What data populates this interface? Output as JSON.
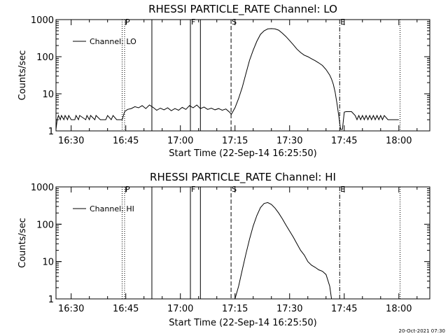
{
  "footer_timestamp": "20-Oct-2021 07:30",
  "chart_data": [
    {
      "type": "line",
      "title": "RHESSI PARTICLE_RATE Channel: LO",
      "xlabel": "Start Time (22-Sep-14 16:25:50)",
      "ylabel": "Counts/sec",
      "yscale": "log",
      "ylim": [
        1,
        1000
      ],
      "xlim": [
        "16:25:50",
        "18:08:30"
      ],
      "xticks": [
        "16:30",
        "16:45",
        "17:00",
        "17:15",
        "17:30",
        "17:45",
        "18:00"
      ],
      "yticks": [
        "1",
        "10",
        "100",
        "1000"
      ],
      "legend": {
        "label": "Channel: LO",
        "placement": "top-left"
      },
      "markers": [
        {
          "time": "16:44:00",
          "style": "dotted",
          "label": ""
        },
        {
          "time": "16:44:40",
          "style": "dotted",
          "label": "P"
        },
        {
          "time": "16:52:10",
          "style": "solid",
          "label": ""
        },
        {
          "time": "17:02:45",
          "style": "solid",
          "label": "F"
        },
        {
          "time": "17:05:30",
          "style": "solid",
          "label": ""
        },
        {
          "time": "17:13:55",
          "style": "dashed",
          "label": "S"
        },
        {
          "time": "17:43:45",
          "style": "dashdot",
          "label": "E"
        },
        {
          "time": "18:00:20",
          "style": "dotted",
          "label": ""
        }
      ],
      "series": [
        {
          "name": "Channel: LO",
          "x": [
            "16:25:50",
            "16:26:10",
            "16:26:30",
            "16:27:00",
            "16:27:20",
            "16:28:00",
            "16:28:20",
            "16:29:00",
            "16:29:20",
            "16:30:00",
            "16:30:30",
            "16:31:00",
            "16:31:20",
            "16:32:00",
            "16:32:20",
            "16:34:00",
            "16:34:20",
            "16:35:00",
            "16:35:20",
            "16:36:30",
            "16:36:50",
            "16:38:00",
            "16:38:20",
            "16:39:30",
            "16:40:00",
            "16:41:00",
            "16:41:30",
            "16:42:30",
            "16:43:00",
            "16:44:00",
            "16:44:40",
            "16:45:30",
            "16:46:30",
            "16:47:30",
            "16:48:30",
            "16:49:30",
            "16:50:30",
            "16:51:30",
            "16:52:30",
            "16:53:30",
            "16:54:30",
            "16:55:30",
            "16:56:30",
            "16:57:30",
            "16:58:30",
            "16:59:30",
            "17:00:30",
            "17:01:30",
            "17:02:30",
            "17:03:30",
            "17:04:30",
            "17:05:30",
            "17:06:30",
            "17:07:30",
            "17:08:30",
            "17:09:30",
            "17:10:30",
            "17:11:30",
            "17:12:30",
            "17:13:30",
            "17:14:00",
            "17:15:00",
            "17:16:00",
            "17:17:00",
            "17:18:00",
            "17:19:00",
            "17:20:00",
            "17:21:00",
            "17:22:00",
            "17:23:00",
            "17:24:00",
            "17:25:00",
            "17:26:00",
            "17:27:00",
            "17:28:00",
            "17:29:00",
            "17:30:00",
            "17:31:00",
            "17:32:00",
            "17:33:00",
            "17:34:00",
            "17:35:00",
            "17:36:00",
            "17:37:00",
            "17:38:00",
            "17:39:00",
            "17:40:00",
            "17:41:00",
            "17:41:30",
            "17:42:00",
            "17:42:30",
            "17:43:00",
            "17:43:30",
            "17:44:00",
            "17:44:30",
            "17:45:00",
            "17:45:30",
            "17:46:00",
            "17:47:00",
            "17:48:00",
            "17:48:30",
            "17:49:00",
            "17:49:30",
            "17:50:00",
            "17:50:30",
            "17:51:00",
            "17:51:30",
            "17:52:00",
            "17:52:30",
            "17:53:00",
            "17:53:30",
            "17:54:00",
            "17:54:30",
            "17:55:00",
            "17:55:30",
            "17:56:00",
            "17:57:00",
            "17:58:00",
            "17:59:00",
            "18:00:00"
          ],
          "y": [
            1.1,
            2.0,
            2.6,
            2.0,
            2.6,
            2.0,
            2.6,
            2.0,
            2.6,
            2.0,
            2.0,
            2.0,
            2.6,
            2.0,
            2.6,
            2.0,
            2.6,
            2.0,
            2.6,
            2.0,
            2.6,
            2.0,
            2.0,
            2.0,
            2.6,
            2.0,
            2.6,
            2.0,
            2.0,
            2.0,
            3.3,
            3.8,
            4.0,
            4.5,
            4.2,
            4.8,
            4.0,
            5.0,
            4.3,
            3.6,
            4.1,
            3.7,
            4.2,
            3.5,
            4.0,
            3.6,
            4.3,
            3.8,
            4.8,
            4.2,
            5.0,
            4.0,
            4.4,
            3.8,
            4.1,
            3.7,
            4.0,
            3.6,
            3.9,
            3.2,
            2.8,
            4.2,
            7.5,
            15,
            35,
            80,
            150,
            260,
            400,
            500,
            560,
            570,
            560,
            520,
            430,
            350,
            270,
            210,
            160,
            130,
            110,
            100,
            88,
            78,
            68,
            58,
            45,
            32,
            25,
            18,
            11,
            5.5,
            2.5,
            1.1,
            1.1,
            3.2,
            3.3,
            3.3,
            3.3,
            2.6,
            2.0,
            2.6,
            2.0,
            2.6,
            2.0,
            2.6,
            2.0,
            2.6,
            2.0,
            2.6,
            2.0,
            2.6,
            2.0,
            2.6,
            2.0,
            2.6,
            2.0,
            2.0,
            2.0,
            2.0
          ]
        }
      ]
    },
    {
      "type": "line",
      "title": "RHESSI PARTICLE_RATE Channel: HI",
      "xlabel": "Start Time (22-Sep-14 16:25:50)",
      "ylabel": "Counts/sec",
      "yscale": "log",
      "ylim": [
        1,
        1000
      ],
      "xlim": [
        "16:25:50",
        "18:08:30"
      ],
      "xticks": [
        "16:30",
        "16:45",
        "17:00",
        "17:15",
        "17:30",
        "17:45",
        "18:00"
      ],
      "yticks": [
        "1",
        "10",
        "100",
        "1000"
      ],
      "legend": {
        "label": "Channel: HI",
        "placement": "top-left"
      },
      "markers": [
        {
          "time": "16:44:00",
          "style": "dotted",
          "label": ""
        },
        {
          "time": "16:44:40",
          "style": "dotted",
          "label": "P"
        },
        {
          "time": "16:52:10",
          "style": "solid",
          "label": ""
        },
        {
          "time": "17:02:45",
          "style": "solid",
          "label": "F"
        },
        {
          "time": "17:05:30",
          "style": "solid",
          "label": ""
        },
        {
          "time": "17:13:55",
          "style": "dashed",
          "label": "S"
        },
        {
          "time": "17:43:45",
          "style": "dashdot",
          "label": "E"
        },
        {
          "time": "18:00:20",
          "style": "dotted",
          "label": ""
        }
      ],
      "series": [
        {
          "name": "Channel: HI",
          "x": [
            "17:15:00",
            "17:16:00",
            "17:17:00",
            "17:18:00",
            "17:19:00",
            "17:20:00",
            "17:21:00",
            "17:22:00",
            "17:23:00",
            "17:24:00",
            "17:25:00",
            "17:26:00",
            "17:27:00",
            "17:28:00",
            "17:29:00",
            "17:30:00",
            "17:31:00",
            "17:32:00",
            "17:33:00",
            "17:34:00",
            "17:35:00",
            "17:36:00",
            "17:37:00",
            "17:38:00",
            "17:39:00",
            "17:40:00",
            "17:41:00",
            "17:41:30"
          ],
          "y": [
            1.0,
            2.2,
            6,
            16,
            40,
            90,
            170,
            280,
            360,
            380,
            340,
            270,
            200,
            140,
            95,
            65,
            45,
            30,
            20,
            15,
            10,
            8,
            7,
            6,
            5.5,
            4.5,
            2.2,
            1.0
          ]
        }
      ]
    }
  ]
}
